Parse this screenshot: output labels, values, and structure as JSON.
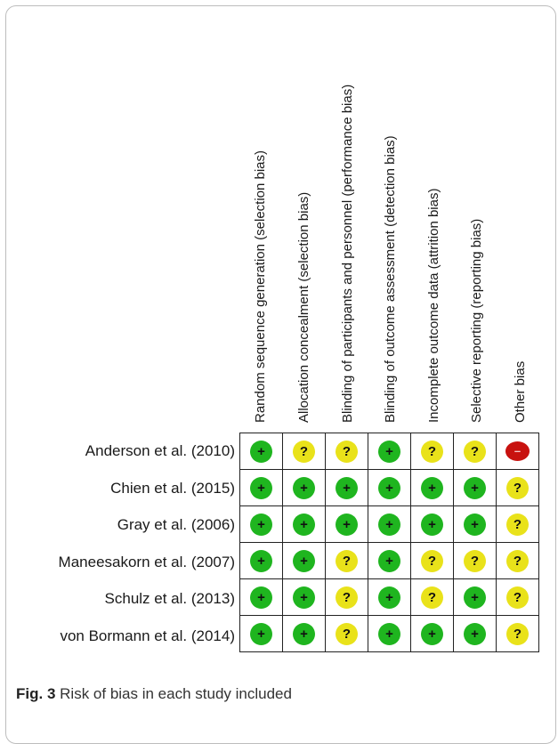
{
  "chart_data": {
    "type": "table",
    "columns": [
      "Random sequence generation (selection bias)",
      "Allocation concealment (selection bias)",
      "Blinding of participants and personnel (performance bias)",
      "Blinding of outcome assessment (detection bias)",
      "Incomplete outcome data (attrition bias)",
      "Selective reporting (reporting bias)",
      "Other bias"
    ],
    "rows": [
      {
        "study": "Anderson et al. (2010)",
        "ratings": [
          "+",
          "?",
          "?",
          "+",
          "?",
          "?",
          "-"
        ]
      },
      {
        "study": "Chien et al. (2015)",
        "ratings": [
          "+",
          "+",
          "+",
          "+",
          "+",
          "+",
          "?"
        ]
      },
      {
        "study": "Gray et al. (2006)",
        "ratings": [
          "+",
          "+",
          "+",
          "+",
          "+",
          "+",
          "?"
        ]
      },
      {
        "study": "Maneesakorn et al. (2007)",
        "ratings": [
          "+",
          "+",
          "?",
          "+",
          "?",
          "?",
          "?"
        ]
      },
      {
        "study": "Schulz et al. (2013)",
        "ratings": [
          "+",
          "+",
          "?",
          "+",
          "?",
          "+",
          "?"
        ]
      },
      {
        "study": "von Bormann et al. (2014)",
        "ratings": [
          "+",
          "+",
          "?",
          "+",
          "+",
          "+",
          "?"
        ]
      }
    ],
    "legend_colors": {
      "+": "#1fb51f",
      "?": "#e9e21a",
      "-": "#c8120f"
    }
  },
  "caption": {
    "label": "Fig. 3",
    "text": "Risk of bias in each study included"
  }
}
